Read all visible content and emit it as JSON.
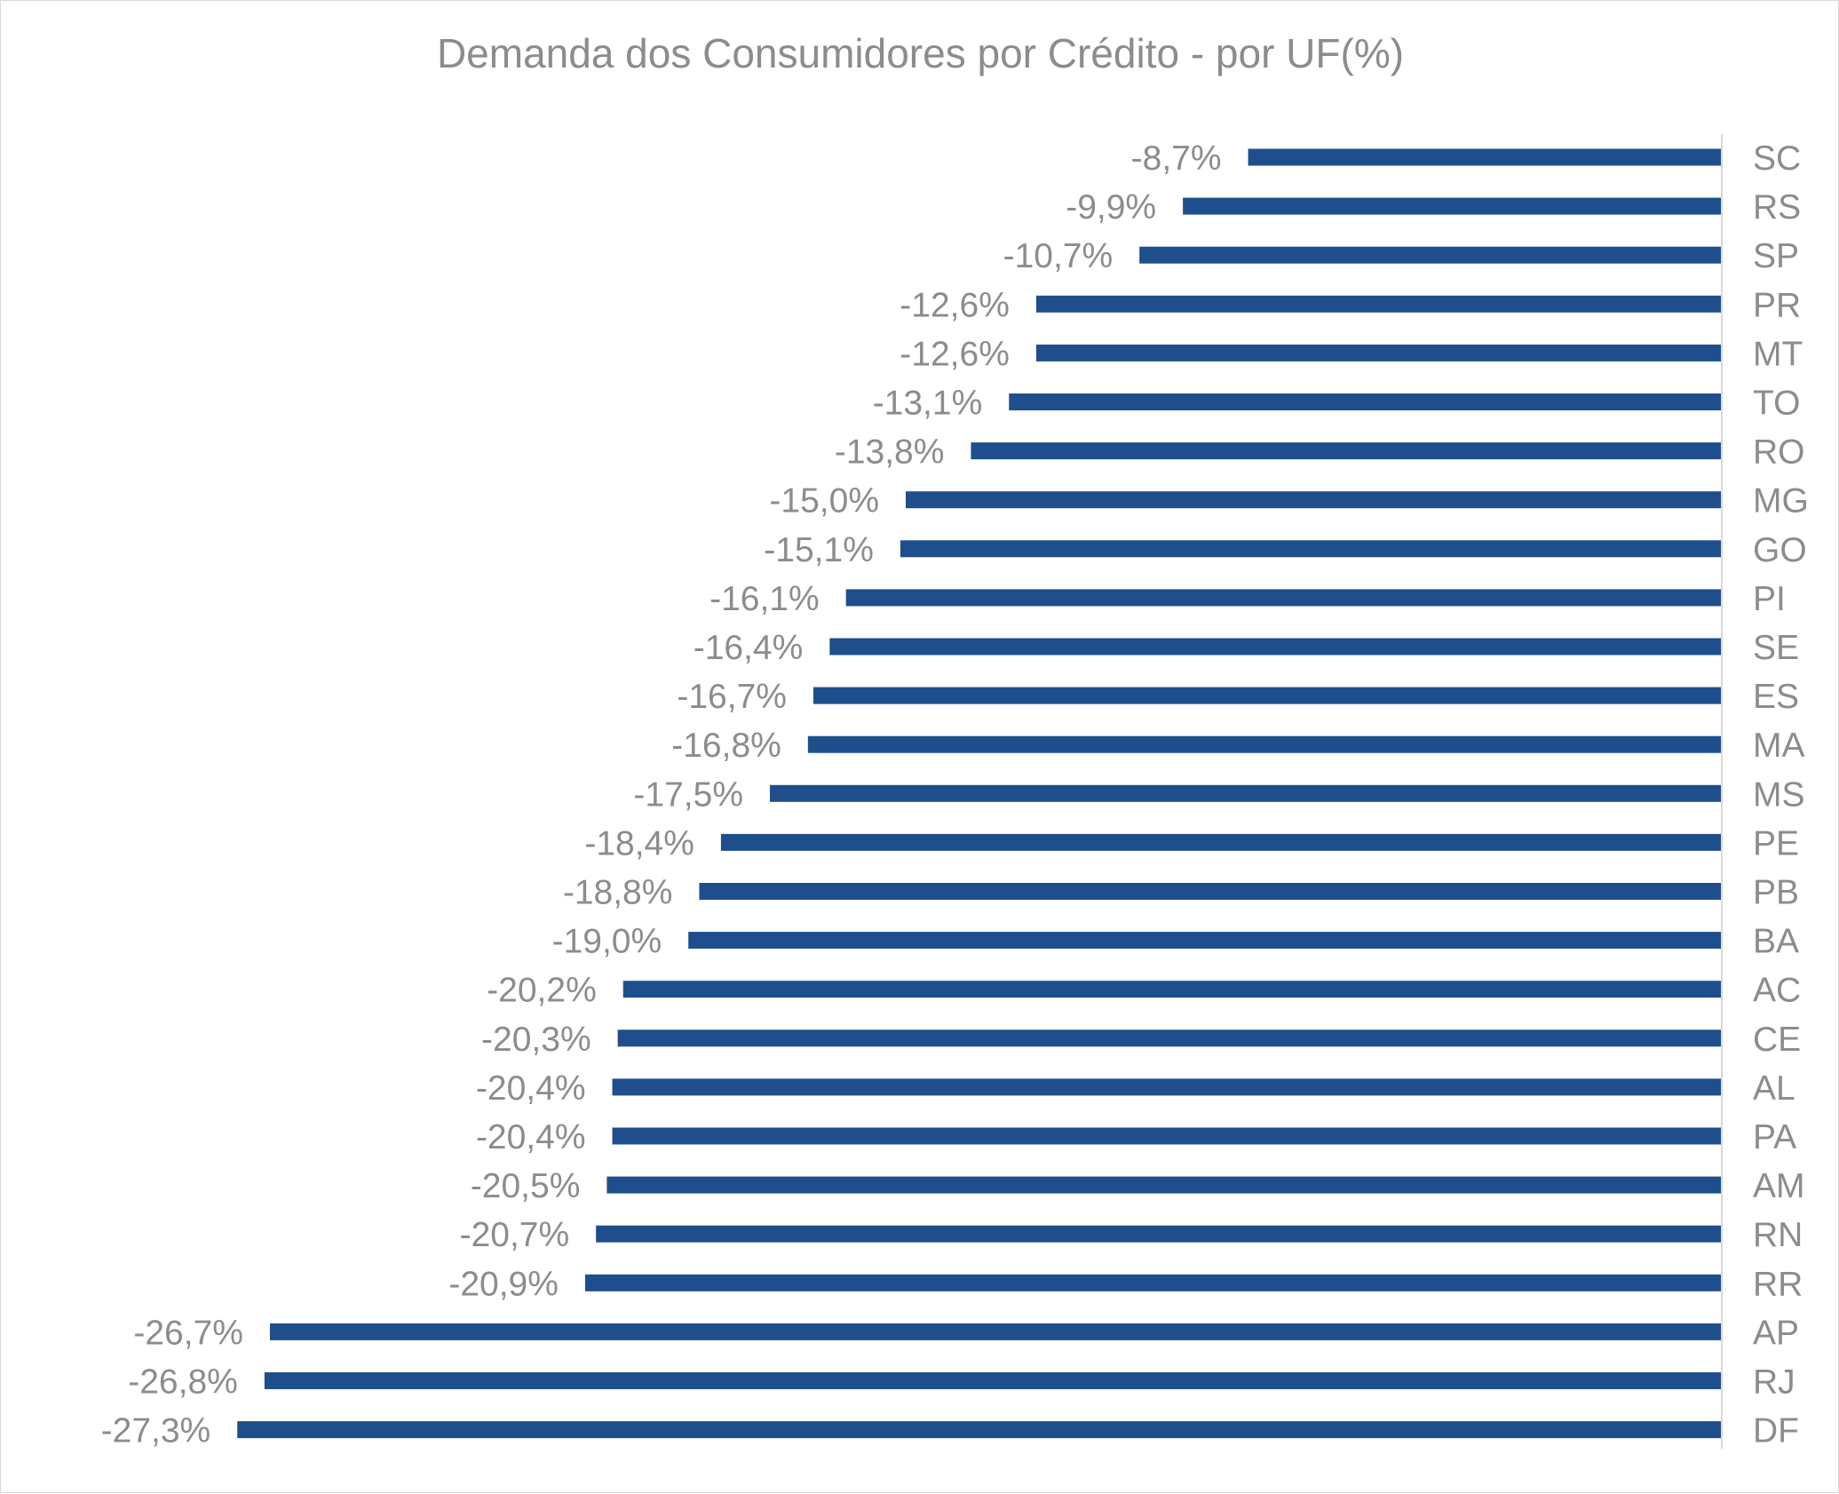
{
  "chart_data": {
    "type": "bar",
    "orientation": "horizontal",
    "title": "Demanda dos Consumidores por Crédito - por UF(%)",
    "xlabel": "",
    "ylabel": "",
    "xlim": [
      -28.5,
      0
    ],
    "grid": false,
    "legend": "none",
    "categories": [
      "SC",
      "RS",
      "SP",
      "PR",
      "MT",
      "TO",
      "RO",
      "MG",
      "GO",
      "PI",
      "SE",
      "ES",
      "MA",
      "MS",
      "PE",
      "PB",
      "BA",
      "AC",
      "CE",
      "AL",
      "PA",
      "AM",
      "RN",
      "RR",
      "AP",
      "RJ",
      "DF"
    ],
    "values": [
      -8.7,
      -9.9,
      -10.7,
      -12.6,
      -12.6,
      -13.1,
      -13.8,
      -15.0,
      -15.1,
      -16.1,
      -16.4,
      -16.7,
      -16.8,
      -17.5,
      -18.4,
      -18.8,
      -19.0,
      -20.2,
      -20.3,
      -20.4,
      -20.4,
      -20.5,
      -20.7,
      -20.9,
      -26.7,
      -26.8,
      -27.3
    ],
    "data_labels": [
      "-8,7%",
      "-9,9%",
      "-10,7%",
      "-12,6%",
      "-12,6%",
      "-13,1%",
      "-13,8%",
      "-15,0%",
      "-15,1%",
      "-16,1%",
      "-16,4%",
      "-16,7%",
      "-16,8%",
      "-17,5%",
      "-18,4%",
      "-18,8%",
      "-19,0%",
      "-20,2%",
      "-20,3%",
      "-20,4%",
      "-20,4%",
      "-20,5%",
      "-20,7%",
      "-20,9%",
      "-26,7%",
      "-26,8%",
      "-27,3%"
    ],
    "colors": {
      "bar": "#1f4e8c",
      "text": "#8c8c8c",
      "axis": "#d9d9d9"
    }
  }
}
